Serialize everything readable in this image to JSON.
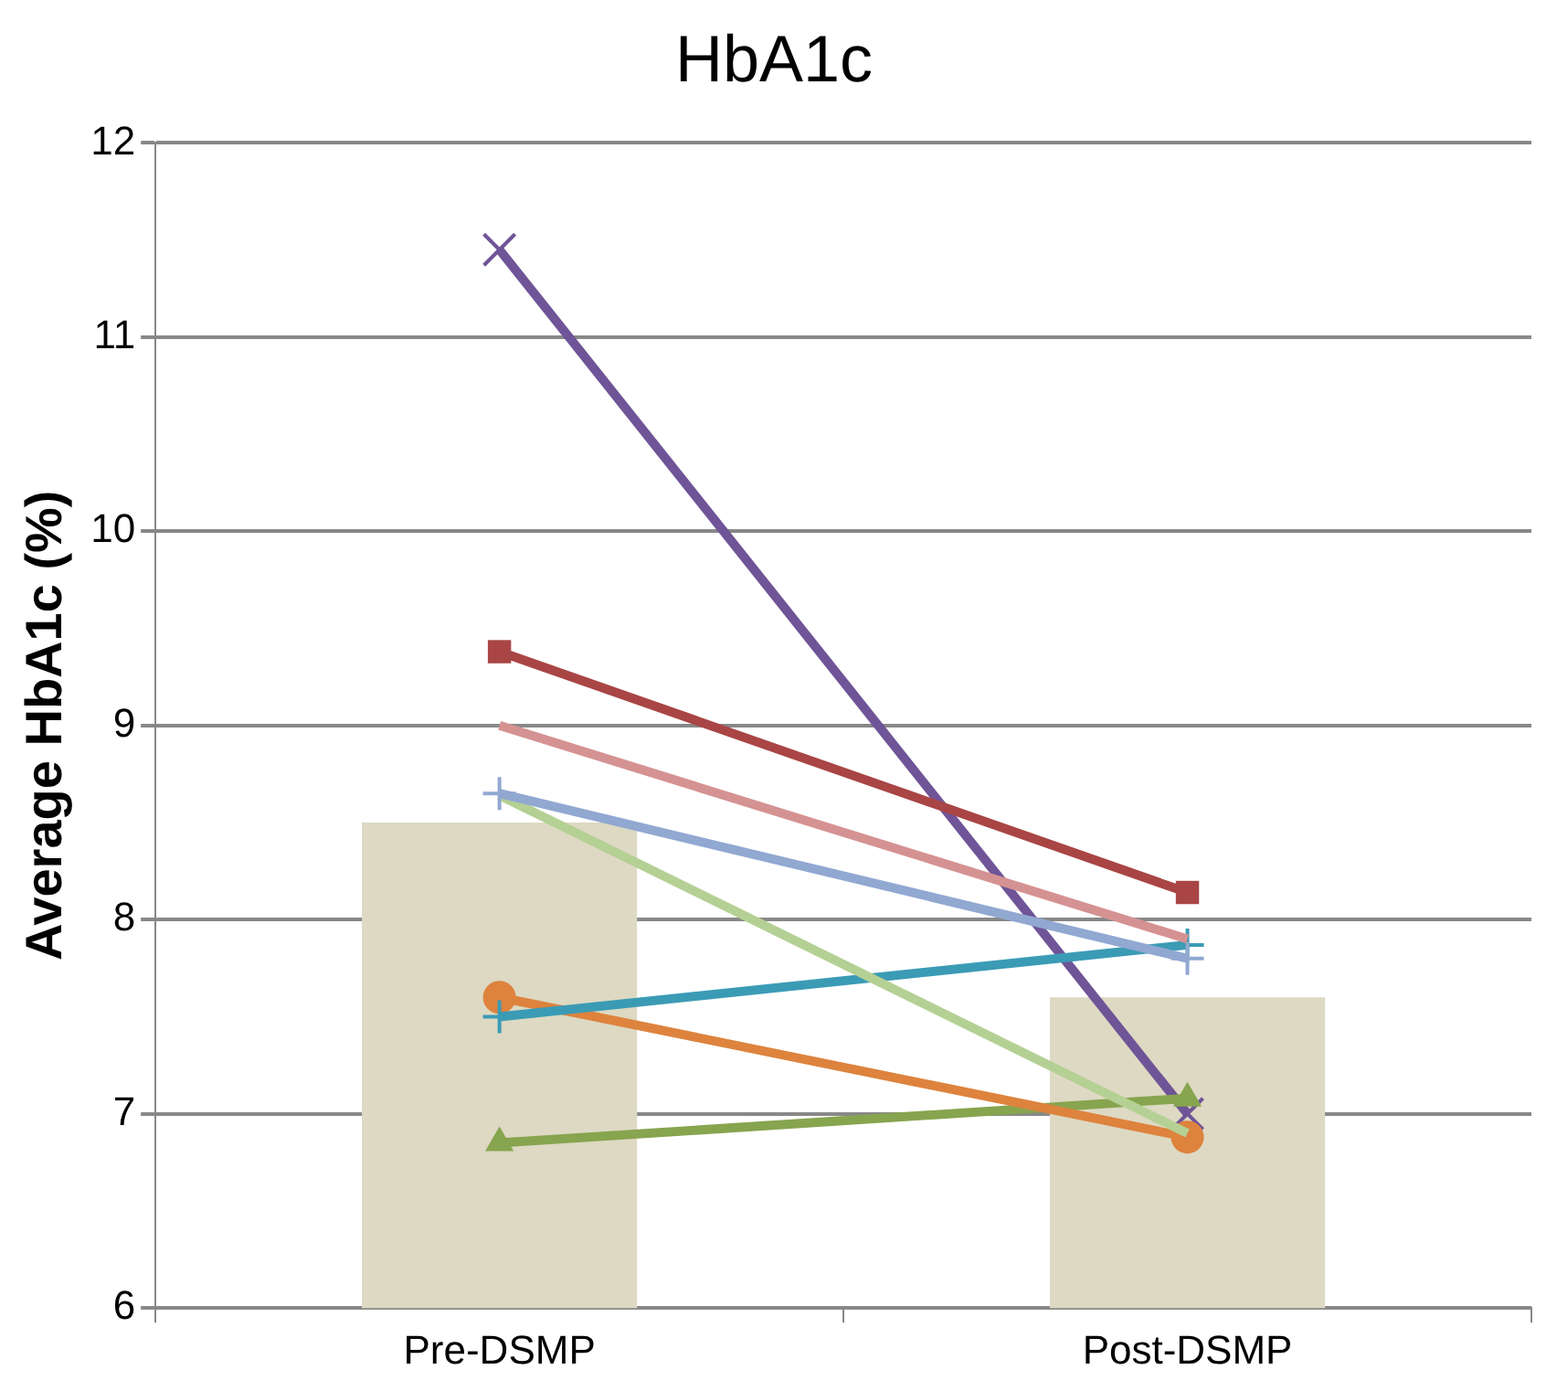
{
  "chart_data": {
    "type": "line",
    "title": "HbA1c",
    "ylabel": "Average HbA1c (%)",
    "categories": [
      "Pre-DSMP",
      "Post-DSMP"
    ],
    "series": [
      {
        "type": "bar",
        "color": "#ddd9c3",
        "values": [
          8.5,
          7.6
        ]
      },
      {
        "color": "#a94545",
        "marker": "square",
        "values": [
          9.38,
          8.14
        ]
      },
      {
        "color": "#d59292",
        "marker": "none",
        "values": [
          9.0,
          7.9
        ]
      },
      {
        "color": "#91a8d1",
        "marker": "cross",
        "values": [
          8.65,
          7.8
        ]
      },
      {
        "color": "#b5d094",
        "marker": "none",
        "values": [
          8.64,
          6.9
        ]
      },
      {
        "color": "#3b9bb5",
        "marker": "cross",
        "values": [
          7.5,
          7.87
        ]
      },
      {
        "color": "#dd833d",
        "marker": "circle",
        "values": [
          7.6,
          6.88
        ]
      },
      {
        "color": "#87a44e",
        "marker": "triangle",
        "values": [
          6.85,
          7.08
        ]
      },
      {
        "color": "#6f5497",
        "marker": "x",
        "values": [
          11.45,
          7.0
        ]
      }
    ],
    "ylim": [
      6,
      12
    ],
    "yticks": [
      6,
      7,
      8,
      9,
      10,
      11,
      12
    ],
    "grid": "y",
    "legend": false
  }
}
